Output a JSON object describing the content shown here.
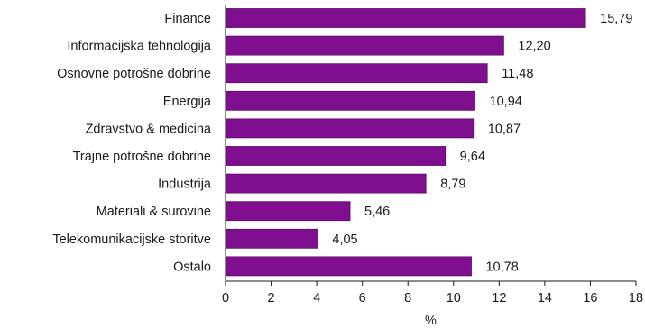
{
  "chart_data": {
    "type": "bar",
    "orientation": "horizontal",
    "categories": [
      "Finance",
      "Informacijska tehnologija",
      "Osnovne potrošne dobrine",
      "Energija",
      "Zdravstvo & medicina",
      "Trajne potrošne dobrine",
      "Industrija",
      "Materiali & surovine",
      "Telekomunikacijske storitve",
      "Ostalo"
    ],
    "values": [
      15.79,
      12.2,
      11.48,
      10.94,
      10.87,
      9.64,
      8.79,
      5.46,
      4.05,
      10.78
    ],
    "value_labels": [
      "15,79",
      "12,20",
      "11,48",
      "10,94",
      "10,87",
      "9,64",
      "8,79",
      "5,46",
      "4,05",
      "10,78"
    ],
    "xlabel": "%",
    "ylabel": "",
    "title": "",
    "xlim": [
      0,
      18
    ],
    "xticks": [
      0,
      2,
      4,
      6,
      8,
      10,
      12,
      14,
      16,
      18
    ],
    "grid": false,
    "bar_color": "#7f0f8f",
    "bar_edge_color": "#5a0a66"
  }
}
